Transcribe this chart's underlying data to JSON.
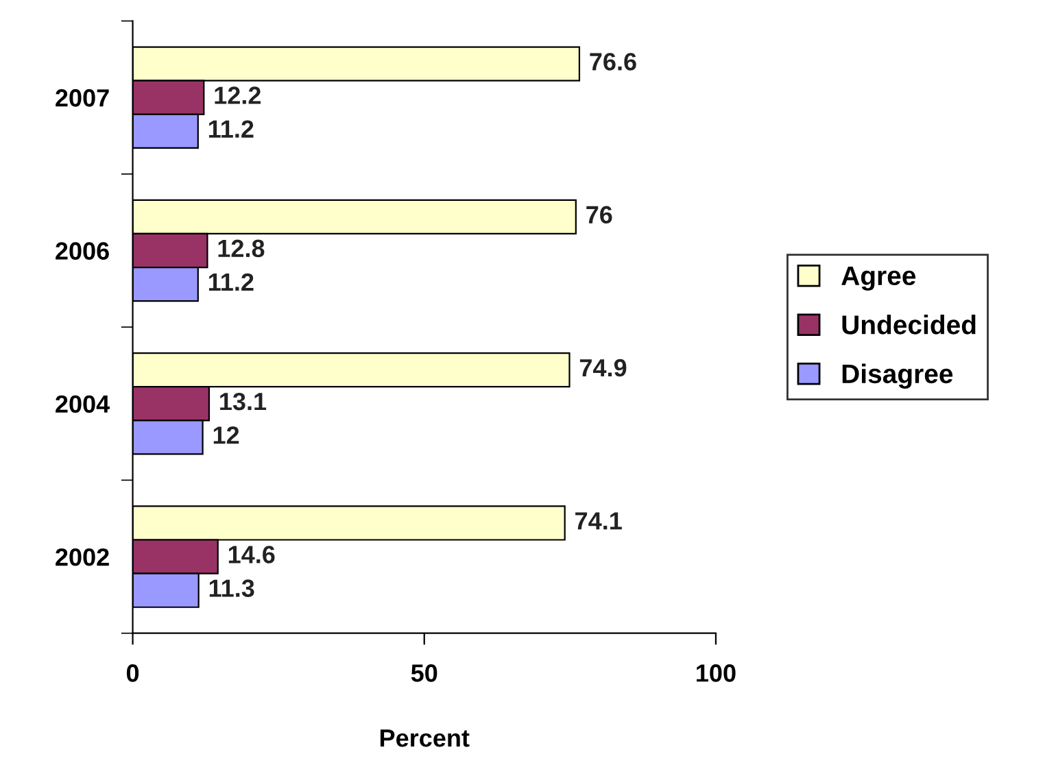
{
  "chart_data": {
    "type": "bar",
    "orientation": "horizontal",
    "xlabel": "Percent",
    "categories": [
      "2007",
      "2006",
      "2004",
      "2002"
    ],
    "series": [
      {
        "name": "Agree",
        "color": "#ffffcc",
        "values": [
          76.6,
          76,
          74.9,
          74.1
        ]
      },
      {
        "name": "Undecided",
        "color": "#993366",
        "values": [
          12.2,
          12.8,
          13.1,
          14.6
        ]
      },
      {
        "name": "Disagree",
        "color": "#9999ff",
        "values": [
          11.2,
          11.2,
          12,
          11.3
        ]
      }
    ],
    "xlim": [
      0,
      100
    ],
    "xticks": [
      0,
      50,
      100
    ],
    "grid": false,
    "legend": "right",
    "data_labels": true
  }
}
